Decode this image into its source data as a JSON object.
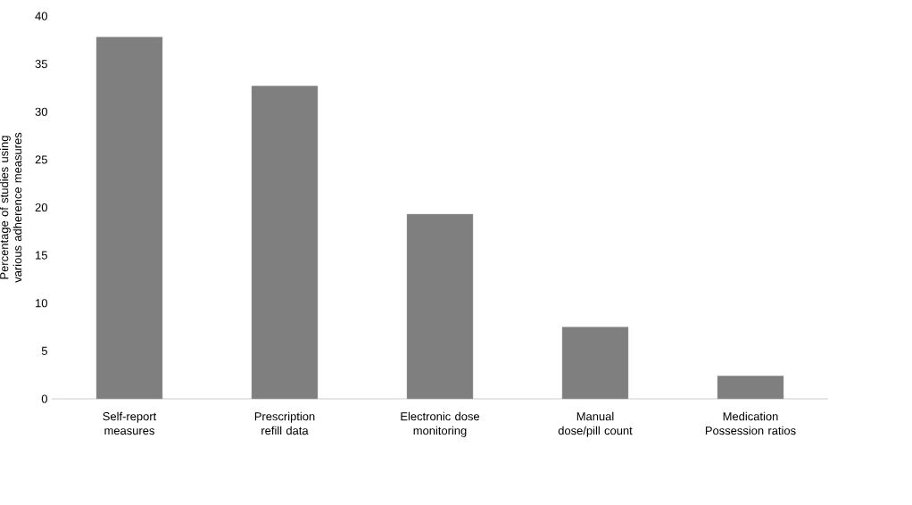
{
  "chart_data": {
    "type": "bar",
    "ylabel": "Percentage of studies using various adherence measures",
    "categories": [
      "Self-report measures",
      "Prescription refill data",
      "Electronic dose monitoring",
      "Manual dose/pill count",
      "Medication Possession ratios"
    ],
    "values": [
      37.8,
      32.7,
      19.3,
      7.5,
      2.4
    ],
    "color": "#7f7f7f",
    "ylim": [
      0,
      40
    ],
    "yticks": [
      0,
      5,
      10,
      15,
      20,
      25,
      30,
      35,
      40
    ]
  }
}
